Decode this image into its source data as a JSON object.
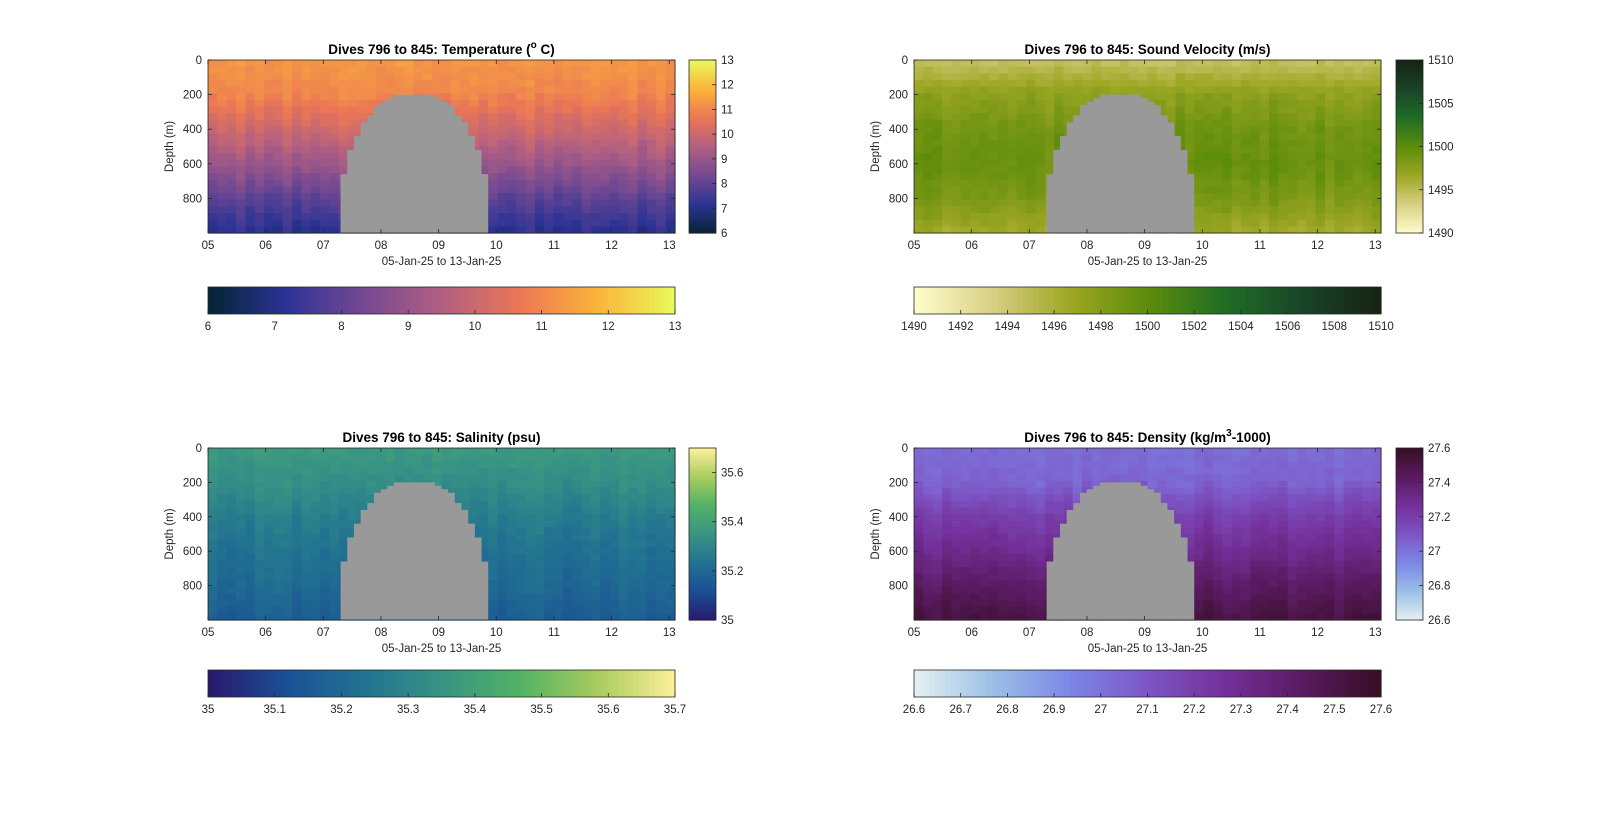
{
  "figure": {
    "background": "#ffffff",
    "gap_fill_color": "#999999"
  },
  "chart_data": [
    {
      "type": "heatmap",
      "title": "Dives 796 to 845: Temperature (° C)",
      "title_parts": [
        "Dives 796 to 845: Temperature (",
        "o",
        " C)"
      ],
      "xlabel": "05-Jan-25 to 13-Jan-25",
      "ylabel": "Depth (m)",
      "x_ticks": [
        "05",
        "06",
        "07",
        "08",
        "09",
        "10",
        "11",
        "12",
        "13"
      ],
      "y_ticks": [
        "0",
        "200",
        "400",
        "600",
        "800"
      ],
      "xlim": [
        5.0,
        13.1
      ],
      "ylim": [
        1000,
        0
      ],
      "variable": "temperature",
      "colormap": "thermal",
      "right_colorbar": {
        "range": [
          6,
          13
        ],
        "ticks": [
          "6",
          "7",
          "8",
          "9",
          "10",
          "11",
          "12",
          "13"
        ]
      },
      "bottom_colorbar": {
        "range": [
          6,
          13
        ],
        "ticks": [
          "6",
          "7",
          "8",
          "9",
          "10",
          "11",
          "12",
          "13"
        ]
      },
      "profile": {
        "depth": [
          0,
          200,
          400,
          600,
          800,
          1000
        ],
        "value": [
          11.3,
          11.0,
          10.1,
          9.1,
          8.0,
          7.1
        ]
      },
      "gap": {
        "x_start": 7.3,
        "x_end": 9.85,
        "top_depth": 190
      }
    },
    {
      "type": "heatmap",
      "title": "Dives 796 to 845: Sound Velocity (m/s)",
      "xlabel": "05-Jan-25 to 13-Jan-25",
      "ylabel": "Depth (m)",
      "x_ticks": [
        "05",
        "06",
        "07",
        "08",
        "09",
        "10",
        "11",
        "12",
        "13"
      ],
      "y_ticks": [
        "0",
        "200",
        "400",
        "600",
        "800"
      ],
      "xlim": [
        5.0,
        13.1
      ],
      "ylim": [
        1000,
        0
      ],
      "variable": "sound velocity",
      "colormap": "speed",
      "right_colorbar": {
        "range": [
          1490,
          1510
        ],
        "ticks": [
          "1490",
          "1495",
          "1500",
          "1505",
          "1510"
        ]
      },
      "bottom_colorbar": {
        "range": [
          1490,
          1510
        ],
        "ticks": [
          "1490",
          "1492",
          "1494",
          "1496",
          "1498",
          "1500",
          "1502",
          "1504",
          "1506",
          "1508",
          "1510"
        ]
      },
      "profile": {
        "depth": [
          0,
          200,
          400,
          600,
          800,
          1000
        ],
        "value": [
          1494.5,
          1497.5,
          1499.0,
          1499.5,
          1498.5,
          1496.5
        ]
      },
      "gap": {
        "x_start": 7.3,
        "x_end": 9.85,
        "top_depth": 190
      }
    },
    {
      "type": "heatmap",
      "title": "Dives 796 to 845: Salinity (psu)",
      "xlabel": "05-Jan-25 to 13-Jan-25",
      "ylabel": "Depth (m)",
      "x_ticks": [
        "05",
        "06",
        "07",
        "08",
        "09",
        "10",
        "11",
        "12",
        "13"
      ],
      "y_ticks": [
        "0",
        "200",
        "400",
        "600",
        "800"
      ],
      "xlim": [
        5.0,
        13.1
      ],
      "ylim": [
        1000,
        0
      ],
      "variable": "salinity",
      "colormap": "haline",
      "right_colorbar": {
        "range": [
          35.0,
          35.7
        ],
        "ticks": [
          "35",
          "35.2",
          "35.4",
          "35.6"
        ]
      },
      "bottom_colorbar": {
        "range": [
          35.0,
          35.7
        ],
        "ticks": [
          "35",
          "35.1",
          "35.2",
          "35.3",
          "35.4",
          "35.5",
          "35.6",
          "35.7"
        ]
      },
      "profile": {
        "depth": [
          0,
          200,
          400,
          600,
          800,
          1000
        ],
        "value": [
          35.37,
          35.33,
          35.27,
          35.23,
          35.2,
          35.16
        ]
      },
      "gap": {
        "x_start": 7.3,
        "x_end": 9.85,
        "top_depth": 190
      }
    },
    {
      "type": "heatmap",
      "title": "Dives 796 to 845: Density (kg/m³-1000)",
      "title_parts": [
        "Dives 796 to 845: Density (kg/m",
        "3",
        "-1000)"
      ],
      "xlabel": "05-Jan-25 to 13-Jan-25",
      "ylabel": "Depth (m)",
      "x_ticks": [
        "05",
        "06",
        "07",
        "08",
        "09",
        "10",
        "11",
        "12",
        "13"
      ],
      "y_ticks": [
        "0",
        "200",
        "400",
        "600",
        "800"
      ],
      "xlim": [
        5.0,
        13.1
      ],
      "ylim": [
        1000,
        0
      ],
      "variable": "density",
      "colormap": "dense",
      "right_colorbar": {
        "range": [
          26.6,
          27.6
        ],
        "ticks": [
          "26.6",
          "26.8",
          "27",
          "27.2",
          "27.4",
          "27.6"
        ]
      },
      "bottom_colorbar": {
        "range": [
          26.6,
          27.6
        ],
        "ticks": [
          "26.6",
          "26.7",
          "26.8",
          "26.9",
          "27",
          "27.1",
          "27.2",
          "27.3",
          "27.4",
          "27.5",
          "27.6"
        ]
      },
      "profile": {
        "depth": [
          0,
          200,
          400,
          600,
          800,
          1000
        ],
        "value": [
          27.02,
          27.05,
          27.2,
          27.3,
          27.42,
          27.52
        ]
      },
      "gap": {
        "x_start": 7.3,
        "x_end": 9.85,
        "top_depth": 190
      }
    }
  ]
}
